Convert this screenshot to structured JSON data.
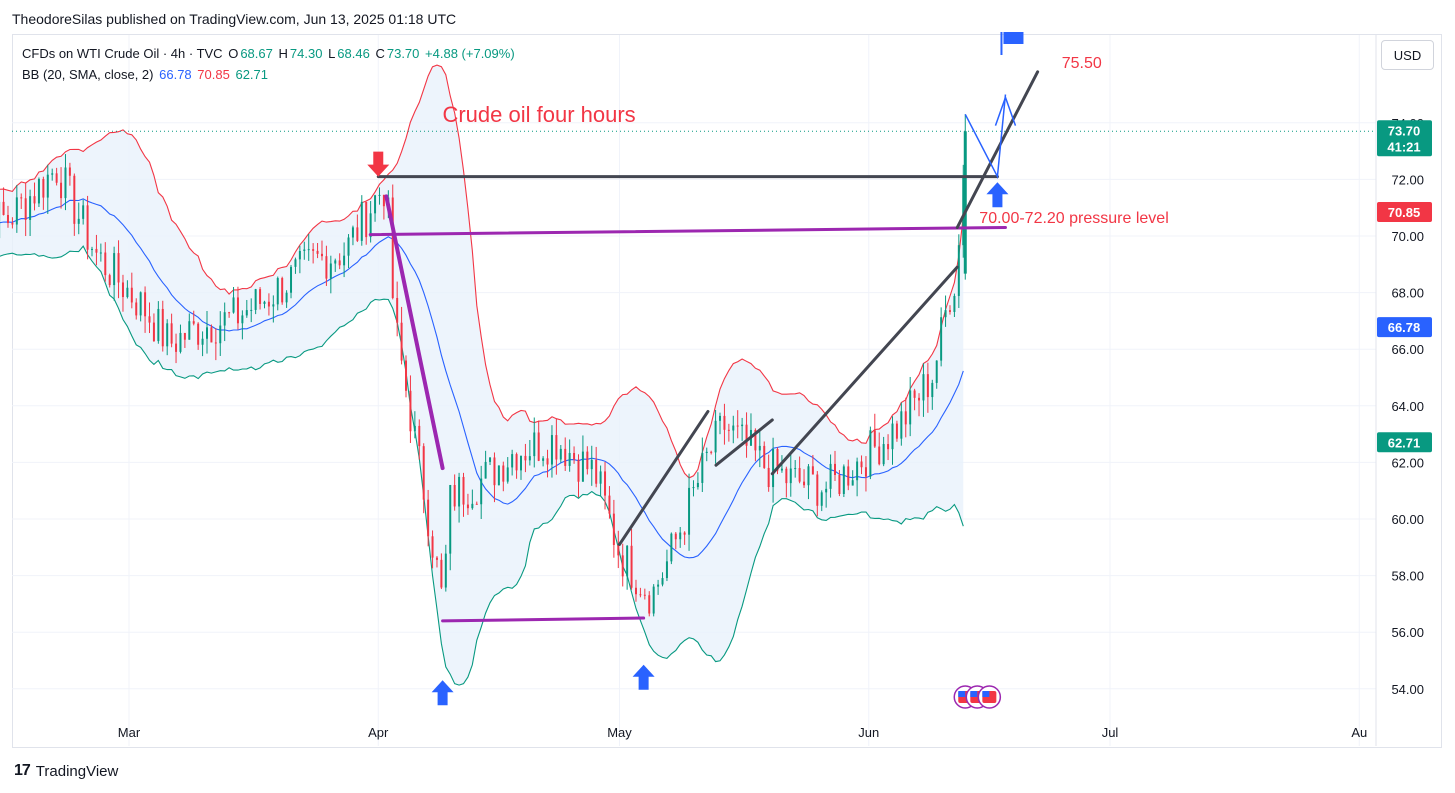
{
  "header": {
    "published": "TheodoreSilas published on TradingView.com, Jun 13, 2025 01:18 UTC"
  },
  "legend": {
    "symbol": "CFDs on WTI Crude Oil · 4h · TVC",
    "o_label": "O",
    "o_value": "68.67",
    "h_label": "H",
    "h_value": "74.30",
    "l_label": "L",
    "l_value": "68.46",
    "c_label": "C",
    "c_value": "73.70",
    "change": "+4.88 (+7.09%)",
    "bb_label": "BB (20, SMA, close, 2)",
    "bb_basis": "66.78",
    "bb_upper": "70.85",
    "bb_lower": "62.71"
  },
  "currency_button": "USD",
  "footer": {
    "brand": "TradingView"
  },
  "colors": {
    "up": "#089981",
    "down": "#f23645",
    "basis": "#2962ff",
    "upper": "#f23645",
    "lower": "#089981",
    "band_fill": "#e8f1fb",
    "annotation_red": "#f23645",
    "purple": "#9c27b0",
    "trend": "#434651",
    "arrow_blue": "#2962ff"
  },
  "chart_data": {
    "type": "candlestick",
    "title": "Crude oil four hours",
    "y_range": [
      53.3,
      75.1
    ],
    "y_ticks": [
      "54.00",
      "56.00",
      "58.00",
      "60.00",
      "62.00",
      "64.00",
      "66.00",
      "68.00",
      "70.00",
      "72.00",
      "74.00"
    ],
    "x_ticks": [
      "Mar",
      "Apr",
      "May",
      "Jun",
      "Jul",
      "Au"
    ],
    "price_labels": [
      {
        "value": "73.70",
        "sub": "41:21",
        "kind": "last"
      },
      {
        "value": "70.85",
        "kind": "upper"
      },
      {
        "value": "66.78",
        "kind": "basis"
      },
      {
        "value": "62.71",
        "kind": "lower"
      }
    ],
    "series": [
      {
        "name": "Close (approx)",
        "points": [
          {
            "t": "Feb 14",
            "v": 70.6
          },
          {
            "t": "Feb 20",
            "v": 72.4
          },
          {
            "t": "Feb 25",
            "v": 69.3
          },
          {
            "t": "Mar 03",
            "v": 67.4
          },
          {
            "t": "Mar 06",
            "v": 66.2
          },
          {
            "t": "Mar 10",
            "v": 66.8
          },
          {
            "t": "Mar 14",
            "v": 67.1
          },
          {
            "t": "Mar 18",
            "v": 67.8
          },
          {
            "t": "Mar 24",
            "v": 69.1
          },
          {
            "t": "Mar 28",
            "v": 69.5
          },
          {
            "t": "Apr 01",
            "v": 71.5
          },
          {
            "t": "Apr 02",
            "v": 71.8
          },
          {
            "t": "Apr 03",
            "v": 66.9
          },
          {
            "t": "Apr 07",
            "v": 60.5
          },
          {
            "t": "Apr 09",
            "v": 57.0
          },
          {
            "t": "Apr 10",
            "v": 60.8
          },
          {
            "t": "Apr 14",
            "v": 61.4
          },
          {
            "t": "Apr 18",
            "v": 62.4
          },
          {
            "t": "Apr 23",
            "v": 62.8
          },
          {
            "t": "Apr 28",
            "v": 61.6
          },
          {
            "t": "May 01",
            "v": 58.8
          },
          {
            "t": "May 05",
            "v": 57.3
          },
          {
            "t": "May 07",
            "v": 58.5
          },
          {
            "t": "May 12",
            "v": 62.2
          },
          {
            "t": "May 14",
            "v": 63.3
          },
          {
            "t": "May 19",
            "v": 61.9
          },
          {
            "t": "May 22",
            "v": 61.4
          },
          {
            "t": "May 27",
            "v": 61.1
          },
          {
            "t": "Jun 02",
            "v": 62.6
          },
          {
            "t": "Jun 05",
            "v": 63.4
          },
          {
            "t": "Jun 09",
            "v": 65.1
          },
          {
            "t": "Jun 11",
            "v": 67.9
          },
          {
            "t": "Jun 12",
            "v": 68.7
          },
          {
            "t": "Jun 13",
            "v": 73.7
          }
        ]
      }
    ],
    "annotations": [
      {
        "text": "Crude oil four hours"
      },
      {
        "text": "75.50"
      },
      {
        "text": "70.00-72.20 pressure level"
      }
    ]
  }
}
